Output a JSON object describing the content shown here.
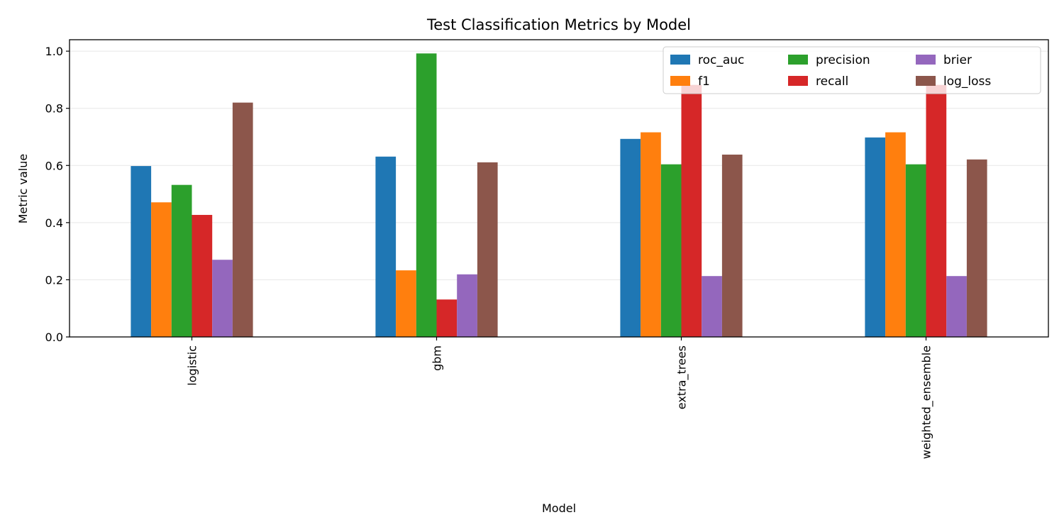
{
  "chart_data": {
    "type": "bar",
    "title": "Test Classification Metrics by Model",
    "xlabel": "Model",
    "ylabel": "Metric value",
    "categories": [
      "logistic",
      "gbm",
      "extra_trees",
      "weighted_ensemble"
    ],
    "ylim": [
      0,
      1.04
    ],
    "yticks": [
      "0.0",
      "0.2",
      "0.4",
      "0.6",
      "0.8",
      "1.0"
    ],
    "grid": "horizontal",
    "legend_position": "top-right",
    "series": [
      {
        "name": "roc_auc",
        "color": "#1f77b4",
        "values": [
          0.598,
          0.631,
          0.693,
          0.698
        ]
      },
      {
        "name": "f1",
        "color": "#ff7f0e",
        "values": [
          0.471,
          0.233,
          0.716,
          0.716
        ]
      },
      {
        "name": "precision",
        "color": "#2ca02c",
        "values": [
          0.532,
          0.992,
          0.604,
          0.604
        ]
      },
      {
        "name": "recall",
        "color": "#d62728",
        "values": [
          0.427,
          0.131,
          0.882,
          0.882
        ]
      },
      {
        "name": "brier",
        "color": "#9467bd",
        "values": [
          0.27,
          0.219,
          0.213,
          0.213
        ]
      },
      {
        "name": "log_loss",
        "color": "#8c564b",
        "values": [
          0.82,
          0.611,
          0.638,
          0.621
        ]
      }
    ]
  }
}
